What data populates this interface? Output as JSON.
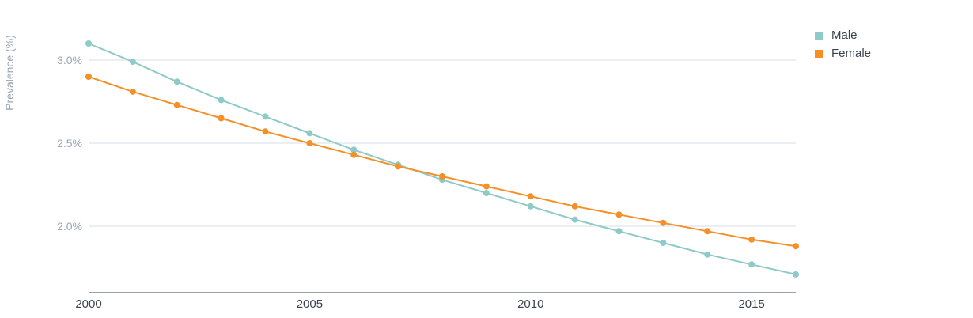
{
  "chart_data": {
    "type": "line",
    "title": "",
    "xlabel": "",
    "ylabel": "Prevalence (%)",
    "x": [
      2000,
      2001,
      2002,
      2003,
      2004,
      2005,
      2006,
      2007,
      2008,
      2009,
      2010,
      2011,
      2012,
      2013,
      2014,
      2015,
      2016
    ],
    "xlim": [
      2000,
      2016
    ],
    "ylim": [
      1.6,
      3.3
    ],
    "x_ticks": [
      {
        "value": 2000,
        "label": "2000"
      },
      {
        "value": 2005,
        "label": "2005"
      },
      {
        "value": 2010,
        "label": "2010"
      },
      {
        "value": 2015,
        "label": "2015"
      }
    ],
    "y_ticks": [
      {
        "value": 2.0,
        "label": "2.0%"
      },
      {
        "value": 2.5,
        "label": "2.5%"
      },
      {
        "value": 3.0,
        "label": "3.0%"
      }
    ],
    "grid": true,
    "legend_position": "top-right",
    "series": [
      {
        "name": "Male",
        "color": "#8ecac7",
        "values": [
          3.1,
          2.99,
          2.87,
          2.76,
          2.66,
          2.56,
          2.46,
          2.37,
          2.28,
          2.2,
          2.12,
          2.04,
          1.97,
          1.9,
          1.83,
          1.77,
          1.71
        ]
      },
      {
        "name": "Female",
        "color": "#f39027",
        "values": [
          2.9,
          2.81,
          2.73,
          2.65,
          2.57,
          2.5,
          2.43,
          2.36,
          2.3,
          2.24,
          2.18,
          2.12,
          2.07,
          2.02,
          1.97,
          1.92,
          1.88
        ]
      }
    ]
  }
}
